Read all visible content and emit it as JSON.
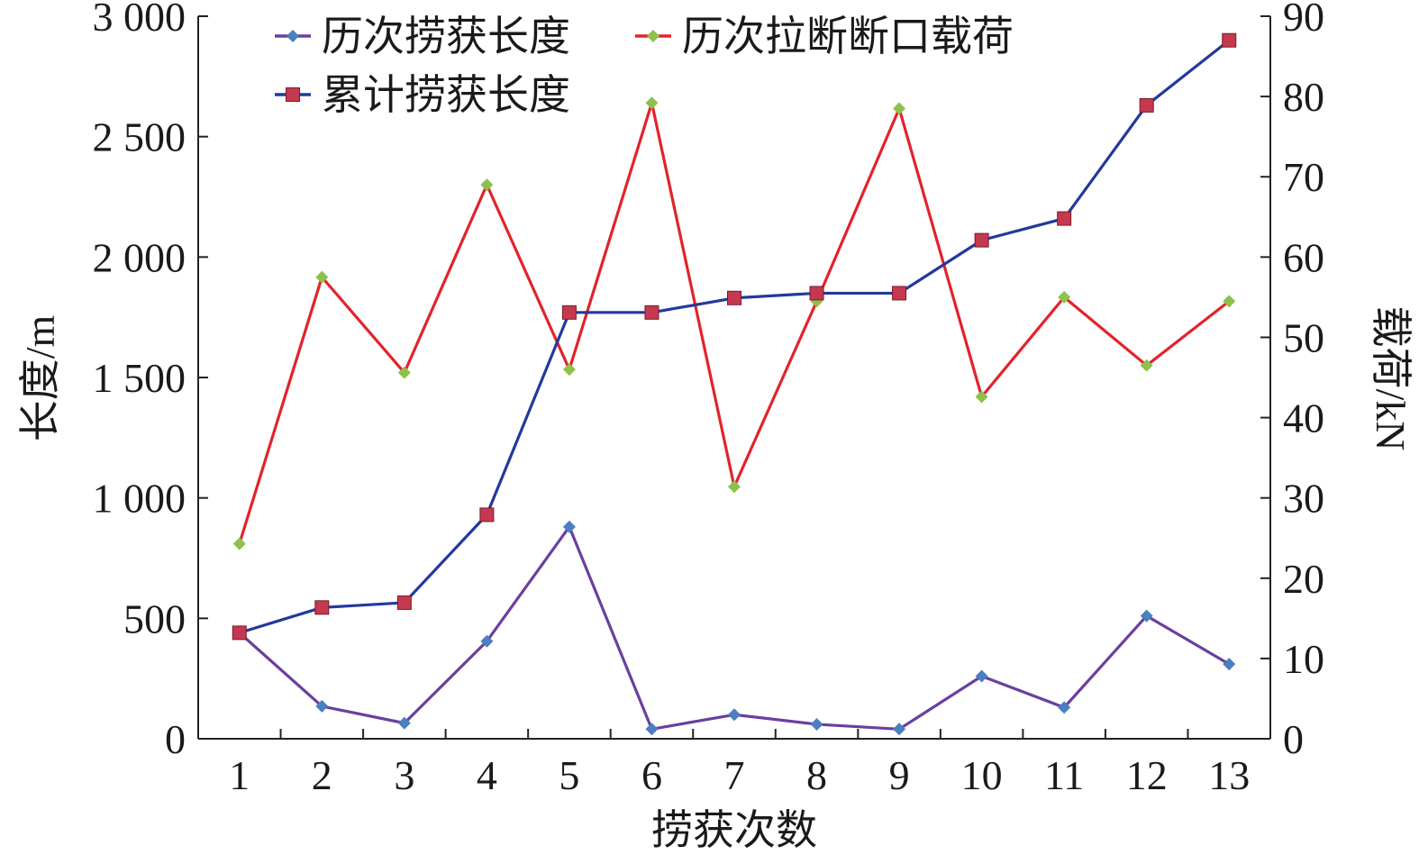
{
  "chart_data": {
    "type": "line",
    "title": "",
    "xlabel": "捞获次数",
    "ylabel_left": "长度/m",
    "ylabel_right": "载荷/kN",
    "categories": [
      "1",
      "2",
      "3",
      "4",
      "5",
      "6",
      "7",
      "8",
      "9",
      "10",
      "11",
      "12",
      "13"
    ],
    "ylim_left": [
      0,
      3000
    ],
    "ylim_right": [
      0,
      90
    ],
    "yticks_left": [
      "0",
      "500",
      "1 000",
      "1 500",
      "2 000",
      "2 500",
      "3 000"
    ],
    "yticks_right": [
      "0",
      "10",
      "20",
      "30",
      "40",
      "50",
      "60",
      "70",
      "80",
      "90"
    ],
    "grid": false,
    "legend_position": "top",
    "series": [
      {
        "name": "历次捞获长度",
        "axis": "left",
        "marker": "diamond",
        "color": "#6a3fa0",
        "markerColor": "#4a7fc0",
        "values": [
          440,
          135,
          65,
          405,
          880,
          40,
          100,
          60,
          40,
          260,
          130,
          510,
          310
        ]
      },
      {
        "name": "历次拉断断口载荷",
        "axis": "right",
        "marker": "diamond",
        "color": "#e2232b",
        "markerColor": "#8dc14b",
        "values": [
          24.3,
          57.5,
          45.6,
          69,
          46,
          79.2,
          31.4,
          54.5,
          78.5,
          42.6,
          55,
          46.5,
          54.5
        ]
      },
      {
        "name": "累计捞获长度",
        "axis": "left",
        "marker": "square",
        "color": "#24389c",
        "markerColor": "#c4394f",
        "values": [
          440,
          545,
          565,
          930,
          1770,
          1770,
          1830,
          1850,
          1850,
          2070,
          2160,
          2630,
          2900
        ]
      }
    ]
  }
}
